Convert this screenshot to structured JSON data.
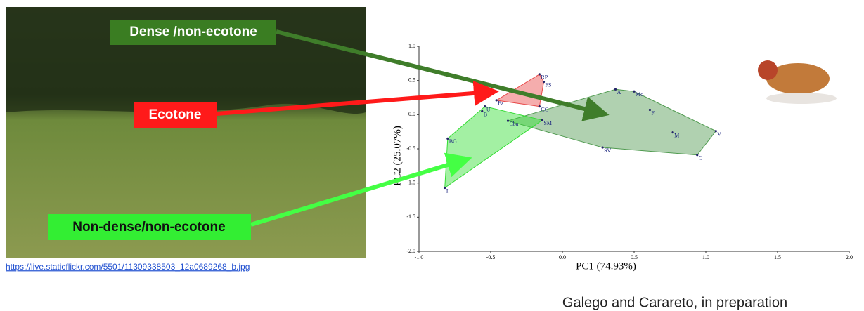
{
  "chart_data": {
    "type": "scatter",
    "x_label": "PC1 (74.93%)",
    "y_label": "PC2 (25.07%)",
    "xlim": [
      -1.0,
      2.0
    ],
    "ylim": [
      -2.0,
      1.0
    ],
    "xticks": [
      {
        "value": -1.0,
        "label": "-1.0"
      },
      -0.5,
      {
        "value": 0.0,
        "label": "0.0"
      },
      0.5,
      {
        "value": 1.0,
        "label": "1.0"
      },
      1.5,
      {
        "value": 2.0,
        "label": "2.0"
      }
    ],
    "yticks": [
      {
        "value": 1.0,
        "label": "1.0"
      },
      0.5,
      {
        "value": 0.0,
        "label": "0.0"
      },
      -0.5,
      {
        "value": -1.0,
        "label": "-1.0"
      },
      -1.5,
      {
        "value": -2.0,
        "label": "-2.0"
      }
    ],
    "series": [
      {
        "name": "Dense /non-ecotone",
        "color": "#4f9a4f",
        "labels": [
          "A",
          "Mc",
          "F",
          "M",
          "V",
          "C",
          "SV",
          "Cba"
        ],
        "x": [
          0.37,
          0.5,
          0.61,
          0.77,
          1.07,
          0.94,
          0.28,
          -0.38
        ],
        "values": [
          0.37,
          0.34,
          0.07,
          -0.26,
          -0.24,
          -0.59,
          -0.48,
          -0.09
        ]
      },
      {
        "name": "Ecotone",
        "color": "#e84a4a",
        "labels": [
          "RP",
          "FS",
          "Fz",
          "CG"
        ],
        "x": [
          -0.16,
          -0.13,
          -0.46,
          -0.16
        ],
        "values": [
          0.59,
          0.48,
          0.21,
          0.12
        ]
      },
      {
        "name": "Non-dense/non-ecotone",
        "color": "#33dd33",
        "labels": [
          "U",
          "B",
          "BG",
          "I",
          "SM"
        ],
        "x": [
          -0.54,
          -0.56,
          -0.8,
          -0.82,
          -0.14
        ],
        "values": [
          0.12,
          0.05,
          -0.35,
          -1.07,
          -0.08
        ]
      }
    ]
  },
  "image_source": "https://live.staticflickr.com/5501/11309338503_12a0689268_b.jpg",
  "citation": "Galego and Carareto, in preparation"
}
